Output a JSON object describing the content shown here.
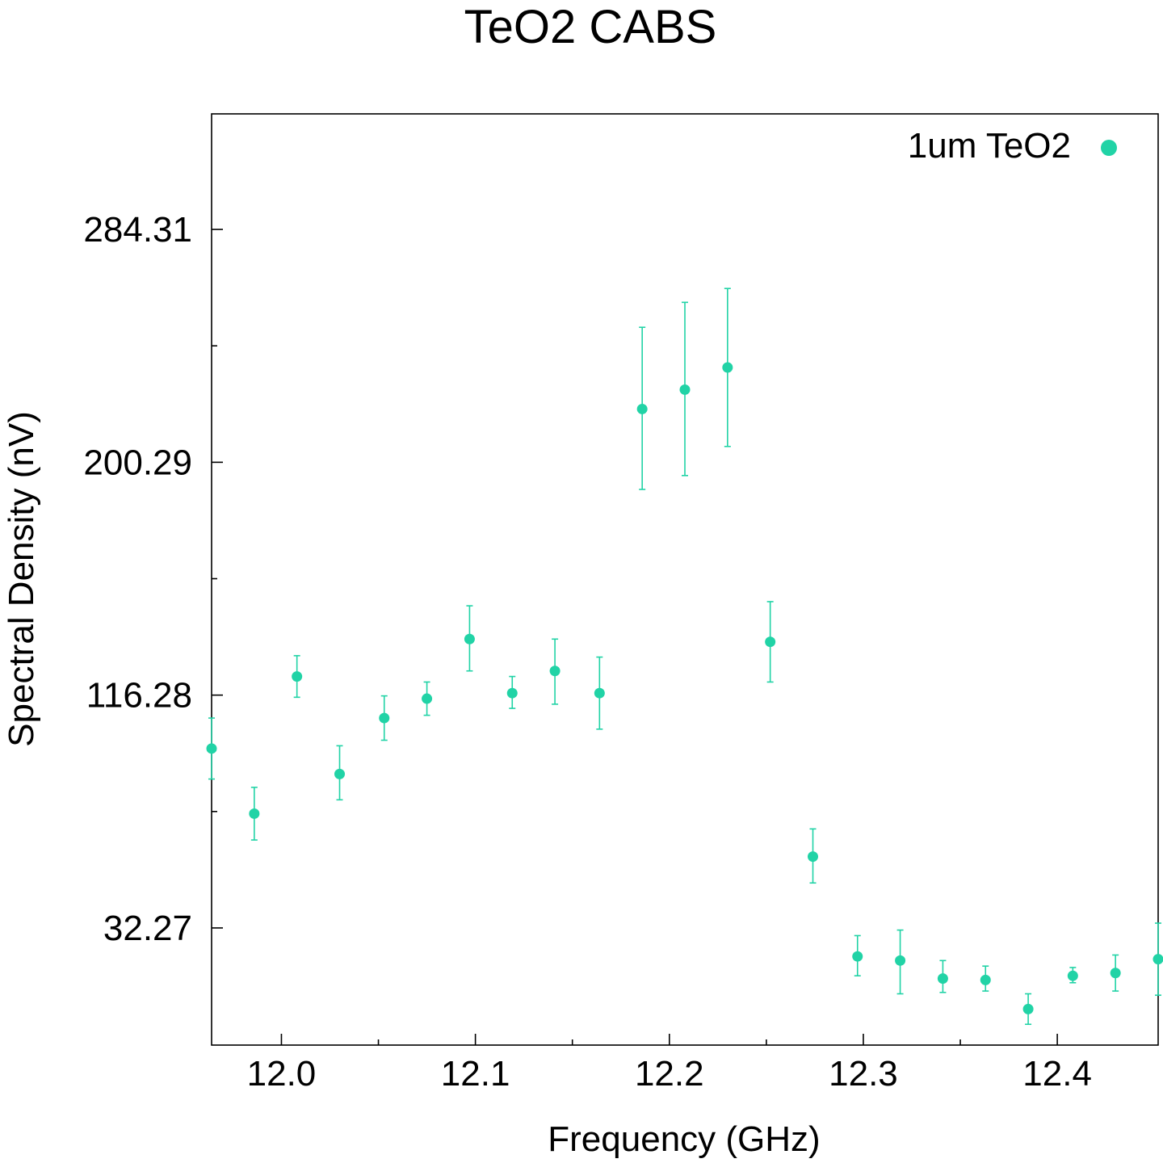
{
  "chart_data": {
    "type": "scatter",
    "title": "TeO2 CABS",
    "xlabel": "Frequency (GHz)",
    "ylabel": "Spectral Density (nV)",
    "xlim": [
      11.964,
      12.452
    ],
    "ylim": [
      -10,
      326
    ],
    "xticks": [
      {
        "value": 12.0,
        "label": "12.0"
      },
      {
        "value": 12.1,
        "label": "12.1"
      },
      {
        "value": 12.2,
        "label": "12.2"
      },
      {
        "value": 12.3,
        "label": "12.3"
      },
      {
        "value": 12.4,
        "label": "12.4"
      }
    ],
    "xminor": [
      12.05,
      12.15,
      12.25,
      12.35
    ],
    "yticks": [
      {
        "value": 32.27,
        "label": "32.27"
      },
      {
        "value": 116.28,
        "label": "116.28"
      },
      {
        "value": 200.29,
        "label": "200.29"
      },
      {
        "value": 284.31,
        "label": "284.31"
      }
    ],
    "yminor": [
      74.28,
      158.29,
      242.3
    ],
    "legend": {
      "position": "top-right"
    },
    "series": [
      {
        "name": "1um TeO2",
        "color": "#21d3a6",
        "marker": "circle",
        "points": [
          {
            "x": 11.964,
            "y": 97.0,
            "lo": 86.0,
            "hi": 108.0
          },
          {
            "x": 11.986,
            "y": 73.5,
            "lo": 64.0,
            "hi": 83.0
          },
          {
            "x": 12.008,
            "y": 123.0,
            "lo": 115.5,
            "hi": 130.5
          },
          {
            "x": 12.03,
            "y": 87.8,
            "lo": 78.5,
            "hi": 98.0
          },
          {
            "x": 12.053,
            "y": 108.0,
            "lo": 100.0,
            "hi": 116.0
          },
          {
            "x": 12.075,
            "y": 115.0,
            "lo": 109.0,
            "hi": 121.0
          },
          {
            "x": 12.097,
            "y": 136.5,
            "lo": 125.0,
            "hi": 148.5
          },
          {
            "x": 12.119,
            "y": 117.0,
            "lo": 111.5,
            "hi": 123.0
          },
          {
            "x": 12.141,
            "y": 125.0,
            "lo": 113.0,
            "hi": 136.5
          },
          {
            "x": 12.164,
            "y": 117.0,
            "lo": 104.0,
            "hi": 130.0
          },
          {
            "x": 12.186,
            "y": 219.5,
            "lo": 190.5,
            "hi": 249.0
          },
          {
            "x": 12.208,
            "y": 226.5,
            "lo": 195.5,
            "hi": 258.0
          },
          {
            "x": 12.23,
            "y": 234.5,
            "lo": 206.0,
            "hi": 263.0
          },
          {
            "x": 12.252,
            "y": 135.5,
            "lo": 121.0,
            "hi": 150.0
          },
          {
            "x": 12.274,
            "y": 58.0,
            "lo": 48.5,
            "hi": 68.0
          },
          {
            "x": 12.297,
            "y": 22.0,
            "lo": 15.0,
            "hi": 29.5
          },
          {
            "x": 12.319,
            "y": 20.5,
            "lo": 8.5,
            "hi": 31.5
          },
          {
            "x": 12.341,
            "y": 14.0,
            "lo": 9.0,
            "hi": 20.5
          },
          {
            "x": 12.363,
            "y": 13.5,
            "lo": 9.5,
            "hi": 18.5
          },
          {
            "x": 12.385,
            "y": 3.0,
            "lo": -2.5,
            "hi": 8.5
          },
          {
            "x": 12.408,
            "y": 15.0,
            "lo": 12.5,
            "hi": 18.0
          },
          {
            "x": 12.43,
            "y": 16.0,
            "lo": 9.5,
            "hi": 22.5
          },
          {
            "x": 12.452,
            "y": 21.0,
            "lo": 8.0,
            "hi": 34.0
          }
        ]
      }
    ]
  }
}
